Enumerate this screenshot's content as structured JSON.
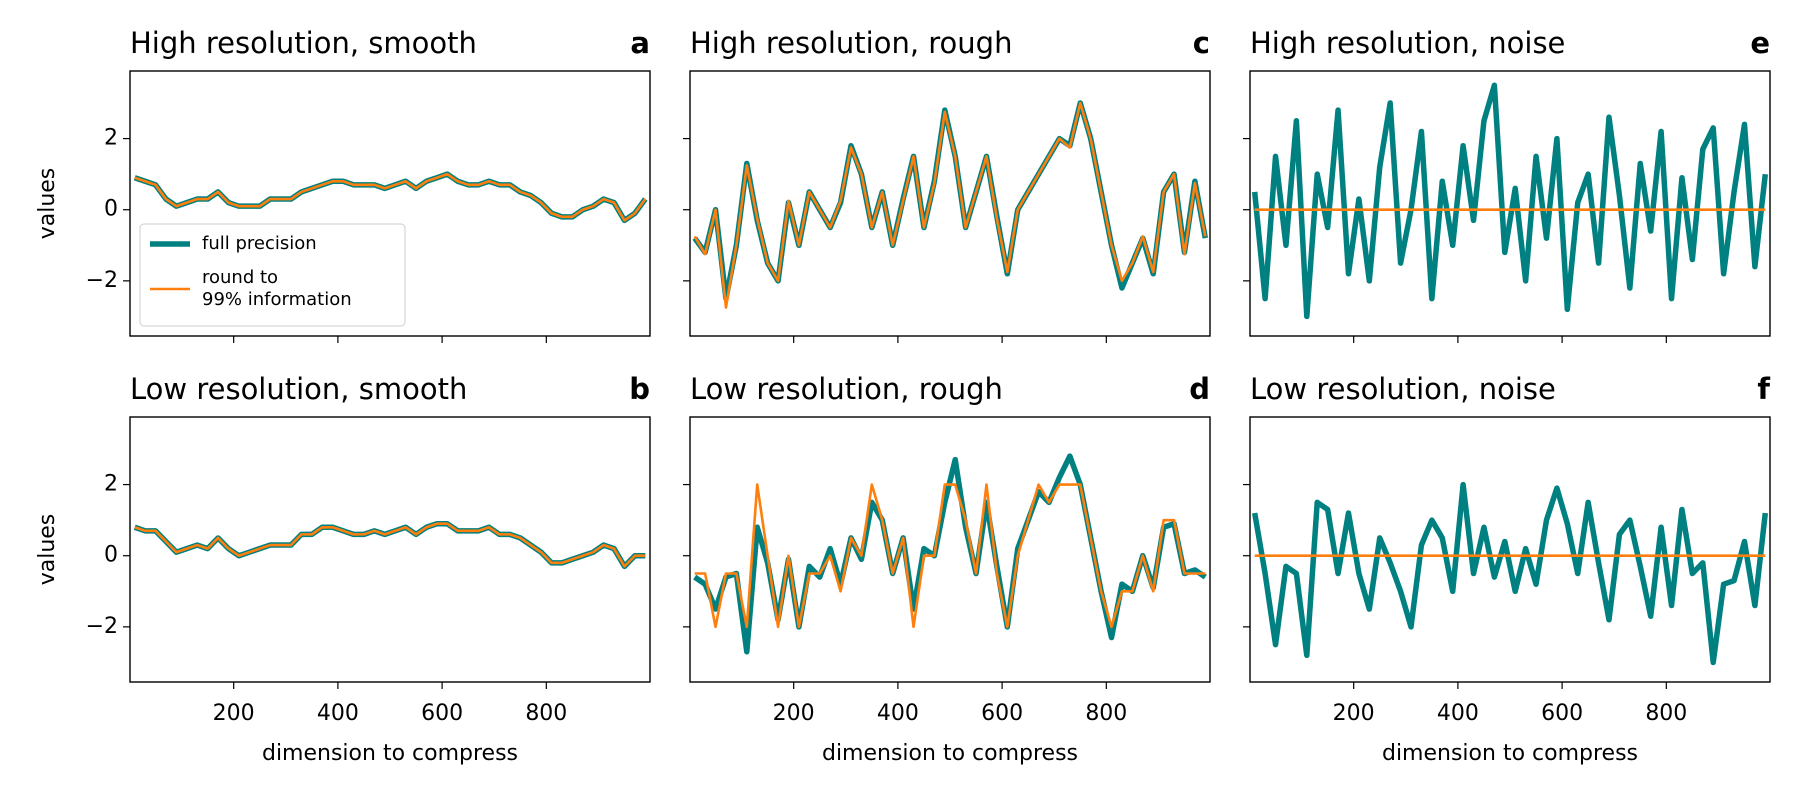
{
  "chart_data": [
    {
      "type": "line",
      "title": "High resolution, smooth",
      "panel_label": "a",
      "ylabel": "values",
      "legend": "lower left",
      "xtick_labels": false,
      "ytick_labels": true,
      "x": [
        10,
        30,
        50,
        70,
        90,
        110,
        130,
        150,
        170,
        190,
        210,
        230,
        250,
        270,
        290,
        310,
        330,
        350,
        370,
        390,
        410,
        430,
        450,
        470,
        490,
        510,
        530,
        550,
        570,
        590,
        610,
        630,
        650,
        670,
        690,
        710,
        730,
        750,
        770,
        790,
        810,
        830,
        850,
        870,
        890,
        910,
        930,
        950,
        970,
        990
      ],
      "series": [
        {
          "name": "full precision",
          "color": "#008080",
          "values": [
            0.9,
            0.8,
            0.7,
            0.3,
            0.1,
            0.2,
            0.3,
            0.3,
            0.5,
            0.2,
            0.1,
            0.1,
            0.1,
            0.3,
            0.3,
            0.3,
            0.5,
            0.6,
            0.7,
            0.8,
            0.8,
            0.7,
            0.7,
            0.7,
            0.6,
            0.7,
            0.8,
            0.6,
            0.8,
            0.9,
            1.0,
            0.8,
            0.7,
            0.7,
            0.8,
            0.7,
            0.7,
            0.5,
            0.4,
            0.2,
            -0.1,
            -0.2,
            -0.2,
            0.0,
            0.1,
            0.3,
            0.2,
            -0.3,
            -0.1,
            0.3
          ]
        },
        {
          "name": "round to\n99% information",
          "color": "#ff7f0e",
          "values": [
            0.9,
            0.8,
            0.7,
            0.3,
            0.1,
            0.2,
            0.3,
            0.3,
            0.5,
            0.2,
            0.1,
            0.1,
            0.1,
            0.3,
            0.3,
            0.3,
            0.5,
            0.6,
            0.7,
            0.8,
            0.8,
            0.7,
            0.7,
            0.7,
            0.6,
            0.7,
            0.8,
            0.6,
            0.8,
            0.9,
            1.0,
            0.8,
            0.7,
            0.7,
            0.8,
            0.7,
            0.7,
            0.5,
            0.4,
            0.2,
            -0.1,
            -0.2,
            -0.2,
            0.0,
            0.1,
            0.3,
            0.2,
            -0.3,
            -0.1,
            0.3
          ]
        }
      ],
      "xlim": [
        1,
        999
      ],
      "xticks": [
        200,
        400,
        600,
        800
      ],
      "ylim": [
        -3.55,
        3.9
      ],
      "yticks": [
        {
          "value": -2,
          "label": "−2"
        },
        0,
        2
      ]
    },
    {
      "type": "line",
      "title": "High resolution, rough",
      "panel_label": "c",
      "xtick_labels": false,
      "ytick_labels": false,
      "x": [
        10,
        30,
        50,
        70,
        90,
        110,
        130,
        150,
        170,
        190,
        210,
        230,
        250,
        270,
        290,
        310,
        330,
        350,
        370,
        390,
        410,
        430,
        450,
        470,
        490,
        510,
        530,
        550,
        570,
        590,
        610,
        630,
        650,
        670,
        690,
        710,
        730,
        750,
        770,
        790,
        810,
        830,
        850,
        870,
        890,
        910,
        930,
        950,
        970,
        990
      ],
      "series": [
        {
          "name": "full precision",
          "color": "#008080",
          "values": [
            -0.8,
            -1.2,
            0.0,
            -2.5,
            -1.0,
            1.3,
            -0.3,
            -1.5,
            -2.0,
            0.2,
            -1.0,
            0.5,
            0.0,
            -0.5,
            0.2,
            1.8,
            1.0,
            -0.5,
            0.5,
            -1.0,
            0.3,
            1.5,
            -0.5,
            0.8,
            2.8,
            1.5,
            -0.5,
            0.5,
            1.5,
            -0.2,
            -1.8,
            0.0,
            0.5,
            1.0,
            1.5,
            2.0,
            1.8,
            3.0,
            2.0,
            0.5,
            -1.0,
            -2.2,
            -1.5,
            -0.8,
            -1.8,
            0.5,
            1.0,
            -1.2,
            0.8,
            -0.8
          ]
        },
        {
          "name": "round to\n99% information",
          "color": "#ff7f0e",
          "values": [
            -0.75,
            -1.25,
            0,
            -2.75,
            -1,
            1.25,
            -0.25,
            -1.5,
            -2,
            0.25,
            -1,
            0.5,
            0,
            -0.5,
            0.25,
            1.75,
            1,
            -0.5,
            0.5,
            -1,
            0.25,
            1.5,
            -0.5,
            0.75,
            2.75,
            1.5,
            -0.5,
            0.5,
            1.5,
            -0.25,
            -1.75,
            0,
            0.5,
            1,
            1.5,
            2,
            1.75,
            3,
            2,
            0.5,
            -1,
            -2,
            -1.5,
            -0.75,
            -1.75,
            0.5,
            1,
            -1.25,
            0.75,
            -0.75
          ]
        }
      ],
      "xlim": [
        1,
        999
      ],
      "xticks": [
        200,
        400,
        600,
        800
      ],
      "ylim": [
        -3.55,
        3.9
      ],
      "yticks": [
        -2,
        0,
        2
      ]
    },
    {
      "type": "line",
      "title": "High resolution, noise",
      "panel_label": "e",
      "xtick_labels": false,
      "ytick_labels": false,
      "x": [
        10,
        30,
        50,
        70,
        90,
        110,
        130,
        150,
        170,
        190,
        210,
        230,
        250,
        270,
        290,
        310,
        330,
        350,
        370,
        390,
        410,
        430,
        450,
        470,
        490,
        510,
        530,
        550,
        570,
        590,
        610,
        630,
        650,
        670,
        690,
        710,
        730,
        750,
        770,
        790,
        810,
        830,
        850,
        870,
        890,
        910,
        930,
        950,
        970,
        990
      ],
      "series": [
        {
          "name": "full precision",
          "color": "#008080",
          "values": [
            0.5,
            -2.5,
            1.5,
            -1.0,
            2.5,
            -3.0,
            1.0,
            -0.5,
            2.8,
            -1.8,
            0.3,
            -2.0,
            1.2,
            3.0,
            -1.5,
            0.0,
            2.2,
            -2.5,
            0.8,
            -1.0,
            1.8,
            -0.3,
            2.5,
            3.5,
            -1.2,
            0.6,
            -2.0,
            1.5,
            -0.8,
            2.0,
            -2.8,
            0.2,
            1.0,
            -1.5,
            2.6,
            0.4,
            -2.2,
            1.3,
            -0.6,
            2.2,
            -2.5,
            0.9,
            -1.4,
            1.7,
            2.3,
            -1.8,
            0.5,
            2.4,
            -1.6,
            1.0
          ]
        },
        {
          "name": "round to\n99% information",
          "color": "#ff7f0e",
          "values": [
            0,
            0,
            0,
            0,
            0,
            0,
            0,
            0,
            0,
            0,
            0,
            0,
            0,
            0,
            0,
            0,
            0,
            0,
            0,
            0,
            0,
            0,
            0,
            0,
            0,
            0,
            0,
            0,
            0,
            0,
            0,
            0,
            0,
            0,
            0,
            0,
            0,
            0,
            0,
            0,
            0,
            0,
            0,
            0,
            0,
            0,
            0,
            0,
            0,
            0
          ]
        }
      ],
      "xlim": [
        1,
        999
      ],
      "xticks": [
        200,
        400,
        600,
        800
      ],
      "ylim": [
        -3.55,
        3.9
      ],
      "yticks": [
        -2,
        0,
        2
      ]
    },
    {
      "type": "line",
      "title": "Low resolution, smooth",
      "panel_label": "b",
      "ylabel": "values",
      "xlabel": "dimension to compress",
      "xtick_labels": true,
      "ytick_labels": true,
      "x": [
        10,
        30,
        50,
        70,
        90,
        110,
        130,
        150,
        170,
        190,
        210,
        230,
        250,
        270,
        290,
        310,
        330,
        350,
        370,
        390,
        410,
        430,
        450,
        470,
        490,
        510,
        530,
        550,
        570,
        590,
        610,
        630,
        650,
        670,
        690,
        710,
        730,
        750,
        770,
        790,
        810,
        830,
        850,
        870,
        890,
        910,
        930,
        950,
        970,
        990
      ],
      "series": [
        {
          "name": "full precision",
          "color": "#008080",
          "values": [
            0.8,
            0.7,
            0.7,
            0.4,
            0.1,
            0.2,
            0.3,
            0.2,
            0.5,
            0.2,
            0.0,
            0.1,
            0.2,
            0.3,
            0.3,
            0.3,
            0.6,
            0.6,
            0.8,
            0.8,
            0.7,
            0.6,
            0.6,
            0.7,
            0.6,
            0.7,
            0.8,
            0.6,
            0.8,
            0.9,
            0.9,
            0.7,
            0.7,
            0.7,
            0.8,
            0.6,
            0.6,
            0.5,
            0.3,
            0.1,
            -0.2,
            -0.2,
            -0.1,
            0.0,
            0.1,
            0.3,
            0.2,
            -0.3,
            0.0,
            0.0
          ]
        },
        {
          "name": "round to\n99% information",
          "color": "#ff7f0e",
          "values": [
            0.8,
            0.7,
            0.7,
            0.4,
            0.1,
            0.2,
            0.3,
            0.2,
            0.5,
            0.2,
            0.0,
            0.1,
            0.2,
            0.3,
            0.3,
            0.3,
            0.6,
            0.6,
            0.8,
            0.8,
            0.7,
            0.6,
            0.6,
            0.7,
            0.6,
            0.7,
            0.8,
            0.6,
            0.8,
            0.9,
            0.9,
            0.7,
            0.7,
            0.7,
            0.8,
            0.6,
            0.6,
            0.5,
            0.3,
            0.1,
            -0.2,
            -0.2,
            -0.1,
            0.0,
            0.1,
            0.3,
            0.2,
            -0.3,
            0.0,
            0.0
          ]
        }
      ],
      "xlim": [
        1,
        999
      ],
      "xticks": [
        200,
        400,
        600,
        800
      ],
      "ylim": [
        -3.55,
        3.9
      ],
      "yticks": [
        {
          "value": -2,
          "label": "−2"
        },
        0,
        2
      ]
    },
    {
      "type": "line",
      "title": "Low resolution, rough",
      "panel_label": "d",
      "xlabel": "dimension to compress",
      "xtick_labels": true,
      "ytick_labels": false,
      "x": [
        10,
        30,
        50,
        70,
        90,
        110,
        130,
        150,
        170,
        190,
        210,
        230,
        250,
        270,
        290,
        310,
        330,
        350,
        370,
        390,
        410,
        430,
        450,
        470,
        490,
        510,
        530,
        550,
        570,
        590,
        610,
        630,
        650,
        670,
        690,
        710,
        730,
        750,
        770,
        790,
        810,
        830,
        850,
        870,
        890,
        910,
        930,
        950,
        970,
        990
      ],
      "series": [
        {
          "name": "full precision",
          "color": "#008080",
          "values": [
            -0.6,
            -0.8,
            -1.5,
            -0.6,
            -0.5,
            -2.7,
            0.8,
            -0.2,
            -1.8,
            -0.1,
            -2.0,
            -0.3,
            -0.6,
            0.2,
            -0.8,
            0.5,
            -0.1,
            1.5,
            1.0,
            -0.5,
            0.5,
            -1.5,
            0.2,
            0.0,
            1.5,
            2.7,
            0.8,
            -0.5,
            1.5,
            -0.3,
            -2.0,
            0.2,
            1.0,
            1.8,
            1.5,
            2.2,
            2.8,
            2.0,
            0.5,
            -1.0,
            -2.3,
            -0.8,
            -1.0,
            0.0,
            -0.9,
            0.8,
            0.9,
            -0.5,
            -0.4,
            -0.6
          ]
        },
        {
          "name": "round to\n99% information",
          "color": "#ff7f0e",
          "values": [
            -0.5,
            -0.5,
            -2,
            -0.5,
            -0.5,
            -2,
            2,
            0,
            -2,
            0,
            -2,
            -0.5,
            -0.5,
            0,
            -1,
            0.5,
            0,
            2,
            1,
            -0.5,
            0.5,
            -2,
            0,
            0,
            2,
            2,
            1,
            -0.5,
            2,
            -0.5,
            -2,
            0,
            1,
            2,
            1.5,
            2,
            2,
            2,
            0.5,
            -1,
            -2,
            -1,
            -1,
            0,
            -1,
            1,
            1,
            -0.5,
            -0.5,
            -0.5
          ]
        }
      ],
      "xlim": [
        1,
        999
      ],
      "xticks": [
        200,
        400,
        600,
        800
      ],
      "ylim": [
        -3.55,
        3.9
      ],
      "yticks": [
        -2,
        0,
        2
      ]
    },
    {
      "type": "line",
      "title": "Low resolution, noise",
      "panel_label": "f",
      "xlabel": "dimension to compress",
      "xtick_labels": true,
      "ytick_labels": false,
      "x": [
        10,
        30,
        50,
        70,
        90,
        110,
        130,
        150,
        170,
        190,
        210,
        230,
        250,
        270,
        290,
        310,
        330,
        350,
        370,
        390,
        410,
        430,
        450,
        470,
        490,
        510,
        530,
        550,
        570,
        590,
        610,
        630,
        650,
        670,
        690,
        710,
        730,
        750,
        770,
        790,
        810,
        830,
        850,
        870,
        890,
        910,
        930,
        950,
        970,
        990
      ],
      "series": [
        {
          "name": "full precision",
          "color": "#008080",
          "values": [
            1.2,
            -0.5,
            -2.5,
            -0.3,
            -0.5,
            -2.8,
            1.5,
            1.3,
            -0.5,
            1.2,
            -0.5,
            -1.5,
            0.5,
            -0.2,
            -1.0,
            -2.0,
            0.3,
            1.0,
            0.5,
            -1.0,
            2.0,
            -0.5,
            0.8,
            -0.6,
            0.4,
            -1.0,
            0.2,
            -0.8,
            1.0,
            1.9,
            0.9,
            -0.5,
            1.5,
            -0.2,
            -1.8,
            0.6,
            1.0,
            -0.3,
            -1.7,
            0.8,
            -1.4,
            1.3,
            -0.5,
            -0.2,
            -3.0,
            -0.8,
            -0.7,
            0.4,
            -1.4,
            1.2
          ]
        },
        {
          "name": "round to\n99% information",
          "color": "#ff7f0e",
          "values": [
            0,
            0,
            0,
            0,
            0,
            0,
            0,
            0,
            0,
            0,
            0,
            0,
            0,
            0,
            0,
            0,
            0,
            0,
            0,
            0,
            0,
            0,
            0,
            0,
            0,
            0,
            0,
            0,
            0,
            0,
            0,
            0,
            0,
            0,
            0,
            0,
            0,
            0,
            0,
            0,
            0,
            0,
            0,
            0,
            0,
            0,
            0,
            0,
            0,
            0
          ]
        }
      ],
      "xlim": [
        1,
        999
      ],
      "xticks": [
        200,
        400,
        600,
        800
      ],
      "ylim": [
        -3.55,
        3.9
      ],
      "yticks": [
        -2,
        0,
        2
      ]
    }
  ]
}
